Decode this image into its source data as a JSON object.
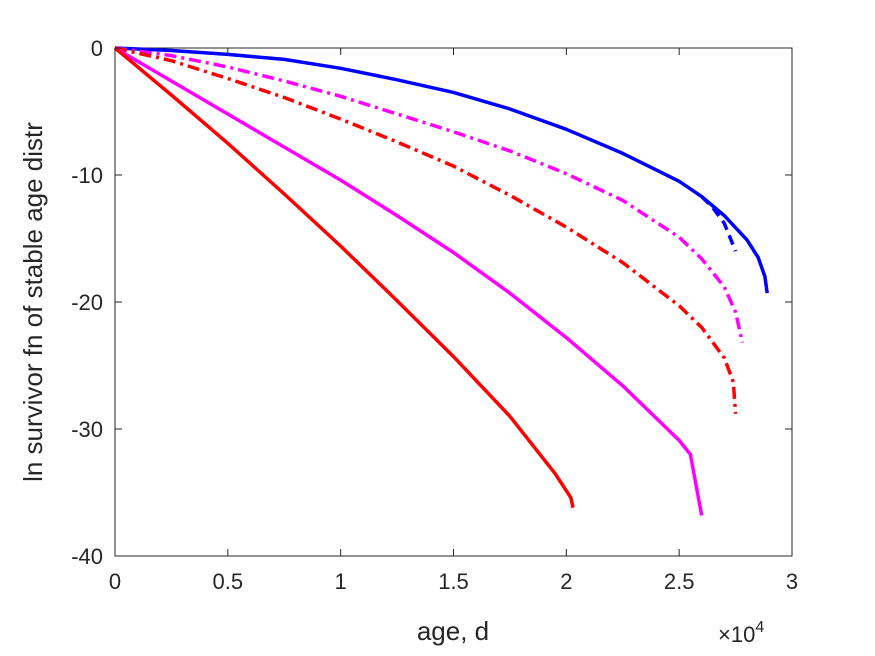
{
  "chart_data": {
    "type": "line",
    "title": "",
    "xlabel": "age, d",
    "ylabel": "ln survivor fn of stable age distr",
    "x_multiplier_base": "×10",
    "x_multiplier_exp": "4",
    "xlim": [
      0,
      3
    ],
    "ylim": [
      -40,
      0
    ],
    "xticks": [
      0,
      0.5,
      1,
      1.5,
      2,
      2.5,
      3
    ],
    "xtick_labels": [
      "0",
      "0.5",
      "1",
      "1.5",
      "2",
      "2.5",
      "3"
    ],
    "yticks": [
      0,
      -10,
      -20,
      -30,
      -40
    ],
    "ytick_labels": [
      "0",
      "-10",
      "-20",
      "-30",
      "-40"
    ],
    "grid": false,
    "series": [
      {
        "color": "#0000ff",
        "dash": "solid",
        "x": [
          0,
          0.25,
          0.5,
          0.75,
          1.0,
          1.25,
          1.5,
          1.75,
          2.0,
          2.25,
          2.5,
          2.6,
          2.7,
          2.8,
          2.85,
          2.88,
          2.89
        ],
        "y": [
          0,
          -0.2,
          -0.5,
          -0.9,
          -1.6,
          -2.5,
          -3.5,
          -4.8,
          -6.4,
          -8.3,
          -10.5,
          -11.7,
          -13.2,
          -15.1,
          -16.5,
          -18.0,
          -19.3
        ]
      },
      {
        "color": "#0000ff",
        "dash": "dashed",
        "x": [
          2.6,
          2.65,
          2.7,
          2.75
        ],
        "y": [
          -11.7,
          -12.6,
          -13.8,
          -16.0
        ]
      },
      {
        "color": "#ff00ff",
        "dash": "dashdot",
        "x": [
          0,
          0.25,
          0.5,
          0.75,
          1.0,
          1.25,
          1.5,
          1.75,
          2.0,
          2.25,
          2.5,
          2.6,
          2.7,
          2.75,
          2.78
        ],
        "y": [
          0,
          -0.6,
          -1.5,
          -2.6,
          -3.8,
          -5.2,
          -6.6,
          -8.1,
          -9.9,
          -12.0,
          -14.9,
          -16.6,
          -18.8,
          -20.8,
          -23.2
        ]
      },
      {
        "color": "#ff0000",
        "dash": "dashdot",
        "x": [
          0,
          0.25,
          0.5,
          0.75,
          1.0,
          1.25,
          1.5,
          1.75,
          2.0,
          2.25,
          2.5,
          2.6,
          2.7,
          2.74,
          2.75
        ],
        "y": [
          0,
          -1.0,
          -2.4,
          -3.9,
          -5.6,
          -7.4,
          -9.3,
          -11.6,
          -14.1,
          -16.9,
          -20.3,
          -22.0,
          -24.4,
          -26.3,
          -28.8
        ]
      },
      {
        "color": "#ff00ff",
        "dash": "solid",
        "x": [
          0,
          0.25,
          0.5,
          0.75,
          1.0,
          1.25,
          1.5,
          1.75,
          2.0,
          2.25,
          2.5,
          2.55,
          2.6
        ],
        "y": [
          0,
          -2.6,
          -5.2,
          -7.8,
          -10.4,
          -13.2,
          -16.1,
          -19.3,
          -22.8,
          -26.6,
          -30.9,
          -32.0,
          -36.8
        ]
      },
      {
        "color": "#ff0000",
        "dash": "solid",
        "x": [
          0,
          0.25,
          0.5,
          0.75,
          1.0,
          1.25,
          1.5,
          1.75,
          1.95,
          2.02,
          2.03
        ],
        "y": [
          0,
          -3.7,
          -7.5,
          -11.5,
          -15.6,
          -19.9,
          -24.3,
          -29.0,
          -33.5,
          -35.4,
          -36.2
        ]
      }
    ]
  }
}
